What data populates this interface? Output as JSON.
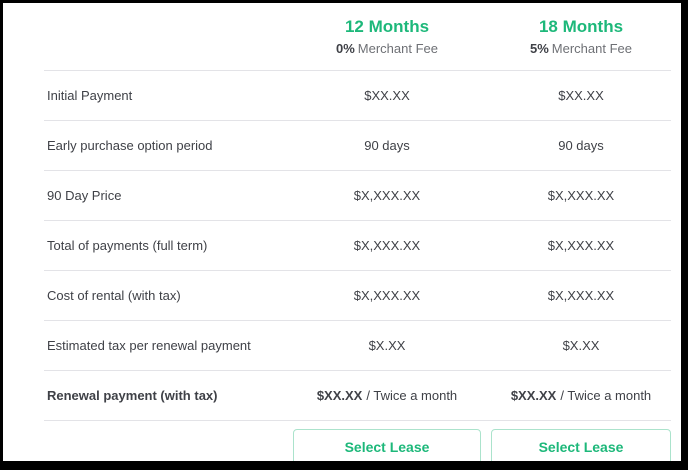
{
  "colors": {
    "accent": "#1DB87A",
    "text": "#3F4147",
    "muted": "#6E7075",
    "divider": "#E3E3E7",
    "button-border": "#ABE3CC",
    "frame-border": "#000000"
  },
  "header": {
    "columns": [
      {
        "term": "12 Months",
        "fee_bold": "0%",
        "fee_text": "Merchant Fee"
      },
      {
        "term": "18 Months",
        "fee_bold": "5%",
        "fee_text": "Merchant Fee"
      }
    ]
  },
  "rows": [
    {
      "label": "Initial Payment",
      "values": [
        "$XX.XX",
        "$XX.XX"
      ]
    },
    {
      "label": "Early purchase option period",
      "values": [
        "90 days",
        "90 days"
      ]
    },
    {
      "label": "90 Day Price",
      "values": [
        "$X,XXX.XX",
        "$X,XXX.XX"
      ]
    },
    {
      "label": "Total of payments (full term)",
      "values": [
        "$X,XXX.XX",
        "$X,XXX.XX"
      ]
    },
    {
      "label": "Cost of rental (with tax)",
      "values": [
        "$X,XXX.XX",
        "$X,XXX.XX"
      ]
    },
    {
      "label": "Estimated tax per renewal payment",
      "values": [
        "$X.XX",
        "$X.XX"
      ]
    },
    {
      "label": "Renewal payment (with tax)",
      "value_amount": "$XX.XX",
      "value_frequency": "/ Twice a month"
    }
  ],
  "buttons": [
    {
      "label": "Select Lease"
    },
    {
      "label": "Select Lease"
    }
  ]
}
